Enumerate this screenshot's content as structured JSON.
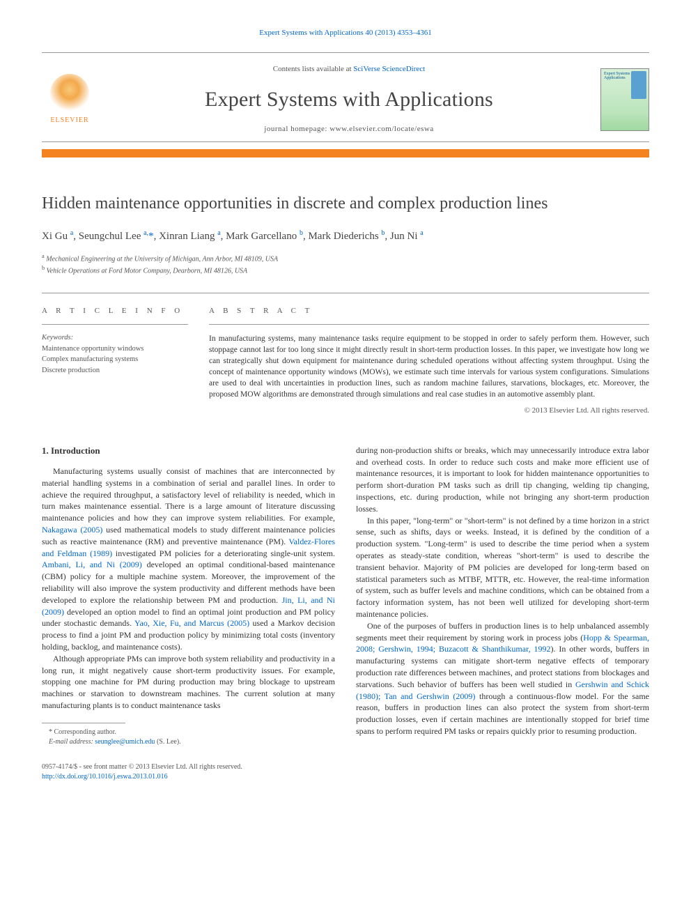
{
  "journal_ref": "Expert Systems with Applications 40 (2013) 4353–4361",
  "header": {
    "contents_prefix": "Contents lists available at ",
    "contents_link": "SciVerse ScienceDirect",
    "journal_title": "Expert Systems with Applications",
    "homepage_prefix": "journal homepage: ",
    "homepage_url": "www.elsevier.com/locate/eswa",
    "publisher_name": "ELSEVIER",
    "cover_text": "Expert Systems with Applications"
  },
  "colors": {
    "accent_orange": "#f58220",
    "link_blue": "#0066cc",
    "text_gray": "#434343",
    "rule_gray": "#999999",
    "cover_green": "#bce5bc"
  },
  "article": {
    "title": "Hidden maintenance opportunities in discrete and complex production lines",
    "authors_html": "Xi Gu <sup>a</sup>, Seungchul Lee <sup>a,</sup><span class='ast'>*</span>, Xinran Liang <sup>a</sup>, Mark Garcellano <sup>b</sup>, Mark Diederichs <sup>b</sup>, Jun Ni <sup>a</sup>",
    "affiliations": [
      "a Mechanical Engineering at the University of Michigan, Ann Arbor, MI 48109, USA",
      "b Vehicle Operations at Ford Motor Company, Dearborn, MI 48126, USA"
    ]
  },
  "info": {
    "heading": "A R T I C L E   I N F O",
    "keywords_label": "Keywords:",
    "keywords": [
      "Maintenance opportunity windows",
      "Complex manufacturing systems",
      "Discrete production"
    ]
  },
  "abstract": {
    "heading": "A B S T R A C T",
    "text": "In manufacturing systems, many maintenance tasks require equipment to be stopped in order to safely perform them. However, such stoppage cannot last for too long since it might directly result in short-term production losses. In this paper, we investigate how long we can strategically shut down equipment for maintenance during scheduled operations without affecting system throughput. Using the concept of maintenance opportunity windows (MOWs), we estimate such time intervals for various system configurations. Simulations are used to deal with uncertainties in production lines, such as random machine failures, starvations, blockages, etc. Moreover, the proposed MOW algorithms are demonstrated through simulations and real case studies in an automotive assembly plant.",
    "copyright": "© 2013 Elsevier Ltd. All rights reserved."
  },
  "body": {
    "section_heading": "1. Introduction",
    "left_paragraphs": [
      "Manufacturing systems usually consist of machines that are interconnected by material handling systems in a combination of serial and parallel lines. In order to achieve the required throughput, a satisfactory level of reliability is needed, which in turn makes maintenance essential. There is a large amount of literature discussing maintenance policies and how they can improve system reliabilities. For example, <span class='ref-link'>Nakagawa (2005)</span> used mathematical models to study different maintenance policies such as reactive maintenance (RM) and preventive maintenance (PM). <span class='ref-link'>Valdez-Flores and Feldman (1989)</span> investigated PM policies for a deteriorating single-unit system. <span class='ref-link'>Ambani, Li, and Ni (2009)</span> developed an optimal conditional-based maintenance (CBM) policy for a multiple machine system. Moreover, the improvement of the reliability will also improve the system productivity and different methods have been developed to explore the relationship between PM and production. <span class='ref-link'>Jin, Li, and Ni (2009)</span> developed an option model to find an optimal joint production and PM policy under stochastic demands. <span class='ref-link'>Yao, Xie, Fu, and Marcus (2005)</span> used a Markov decision process to find a joint PM and production policy by minimizing total costs (inventory holding, backlog, and maintenance costs).",
      "Although appropriate PMs can improve both system reliability and productivity in a long run, it might negatively cause short-term productivity issues. For example, stopping one machine for PM during production may bring blockage to upstream machines or starvation to downstream machines. The current solution at many manufacturing plants is to conduct maintenance tasks"
    ],
    "right_paragraphs": [
      "during non-production shifts or breaks, which may unnecessarily introduce extra labor and overhead costs. In order to reduce such costs and make more efficient use of maintenance resources, it is important to look for hidden maintenance opportunities to perform short-duration PM tasks such as drill tip changing, welding tip changing, inspections, etc. during production, while not bringing any short-term production losses.",
      "In this paper, \"long-term\" or \"short-term\" is not defined by a time horizon in a strict sense, such as shifts, days or weeks. Instead, it is defined by the condition of a production system. \"Long-term\" is used to describe the time period when a system operates as steady-state condition, whereas \"short-term\" is used to describe the transient behavior. Majority of PM policies are developed for long-term based on statistical parameters such as MTBF, MTTR, etc. However, the real-time information of system, such as buffer levels and machine conditions, which can be obtained from a factory information system, has not been well utilized for developing short-term maintenance policies.",
      "One of the purposes of buffers in production lines is to help unbalanced assembly segments meet their requirement by storing work in process jobs (<span class='ref-link'>Hopp & Spearman, 2008; Gershwin, 1994; Buzacott & Shanthikumar, 1992</span>). In other words, buffers in manufacturing systems can mitigate short-term negative effects of temporary production rate differences between machines, and protect stations from blockages and starvations. Such behavior of buffers has been well studied in <span class='ref-link'>Gershwin and Schick (1980); Tan and Gershwin (2009)</span> through a continuous-flow model. For the same reason, buffers in production lines can also protect the system from short-term production losses, even if certain machines are intentionally stopped for brief time spans to perform required PM tasks or repairs quickly prior to resuming production."
    ]
  },
  "footnote": {
    "corresponding": "* Corresponding author.",
    "email_label": "E-mail address:",
    "email": "seunglee@umich.edu",
    "email_suffix": "(S. Lee)."
  },
  "footer": {
    "issn_line": "0957-4174/$ - see front matter © 2013 Elsevier Ltd. All rights reserved.",
    "doi": "http://dx.doi.org/10.1016/j.eswa.2013.01.016"
  }
}
